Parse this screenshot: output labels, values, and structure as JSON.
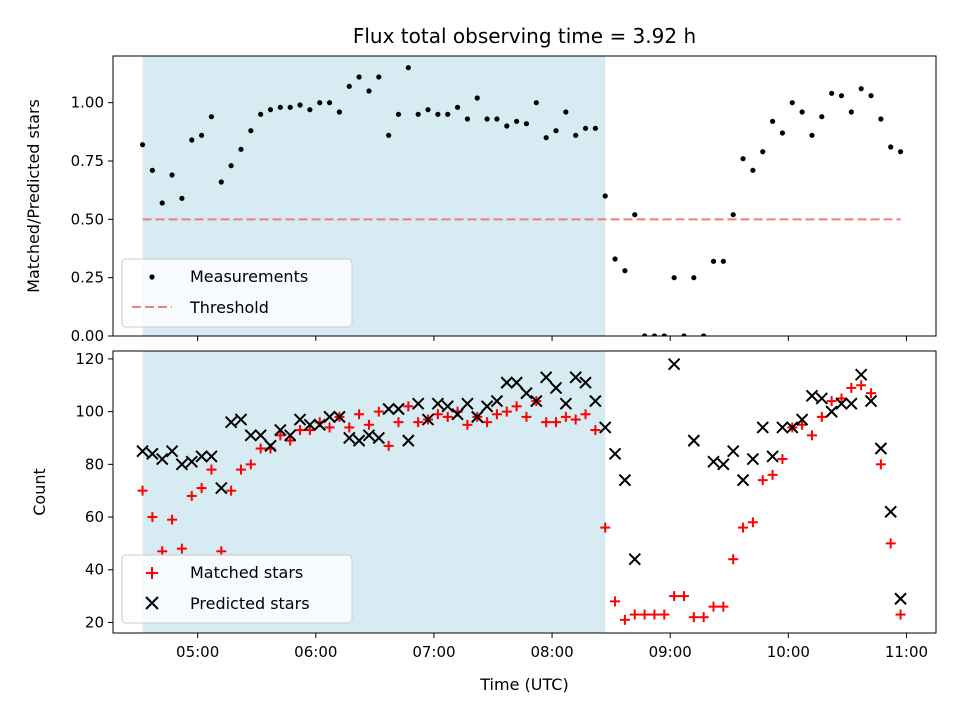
{
  "chart_data": [
    {
      "type": "scatter",
      "title": "Flux total observing time = 3.92 h",
      "xlabel": "",
      "ylabel": "Matched/Predicted stars",
      "xlim": [
        "04:17",
        "11:15"
      ],
      "ylim": [
        0,
        1.2
      ],
      "yticks": [
        "0.00",
        "0.25",
        "0.50",
        "0.75",
        "1.00"
      ],
      "ytick_values": [
        0,
        0.25,
        0.5,
        0.75,
        1.0
      ],
      "grid": false,
      "legend": "lower-left",
      "shaded_span": [
        "04:32",
        "08:27"
      ],
      "shade_color": "#add8e6",
      "threshold": {
        "name": "Threshold",
        "y": 0.5,
        "x_range": [
          "04:32",
          "10:57"
        ],
        "color": "#f08080"
      },
      "series": [
        {
          "name": "Measurements",
          "color": "#000000",
          "marker": "dot",
          "x": [
            "04:32",
            "04:37",
            "04:42",
            "04:47",
            "04:52",
            "04:57",
            "05:02",
            "05:07",
            "05:12",
            "05:17",
            "05:22",
            "05:27",
            "05:32",
            "05:37",
            "05:42",
            "05:47",
            "05:52",
            "05:57",
            "06:02",
            "06:07",
            "06:12",
            "06:17",
            "06:22",
            "06:27",
            "06:32",
            "06:37",
            "06:42",
            "06:47",
            "06:52",
            "06:57",
            "07:02",
            "07:07",
            "07:12",
            "07:17",
            "07:22",
            "07:27",
            "07:32",
            "07:37",
            "07:42",
            "07:47",
            "07:52",
            "07:57",
            "08:02",
            "08:07",
            "08:12",
            "08:17",
            "08:22",
            "08:27",
            "08:32",
            "08:37",
            "08:42",
            "08:47",
            "08:52",
            "08:57",
            "09:02",
            "09:07",
            "09:12",
            "09:17",
            "09:22",
            "09:27",
            "09:32",
            "09:37",
            "09:42",
            "09:47",
            "09:52",
            "09:57",
            "10:02",
            "10:07",
            "10:12",
            "10:17",
            "10:22",
            "10:27",
            "10:32",
            "10:37",
            "10:42",
            "10:47",
            "10:52",
            "10:57"
          ],
          "y": [
            0.82,
            0.71,
            0.57,
            0.69,
            0.59,
            0.84,
            0.86,
            0.94,
            0.66,
            0.73,
            0.8,
            0.88,
            0.95,
            0.97,
            0.98,
            0.98,
            0.99,
            0.97,
            1.0,
            1.0,
            0.96,
            1.07,
            1.11,
            1.05,
            1.11,
            0.86,
            0.95,
            1.15,
            0.95,
            0.97,
            0.95,
            0.95,
            0.98,
            0.93,
            1.02,
            0.93,
            0.93,
            0.9,
            0.92,
            0.91,
            1.0,
            0.85,
            0.88,
            0.96,
            0.86,
            0.89,
            0.89,
            0.6,
            0.33,
            0.28,
            0.52,
            0.0,
            0.0,
            0.0,
            0.25,
            0.0,
            0.25,
            0.0,
            0.32,
            0.32,
            0.52,
            0.76,
            0.71,
            0.79,
            0.92,
            0.87,
            1.0,
            0.96,
            0.86,
            0.94,
            1.04,
            1.03,
            0.96,
            1.06,
            1.03,
            0.93,
            0.81,
            0.79
          ]
        }
      ]
    },
    {
      "type": "scatter",
      "title": "",
      "xlabel": "Time (UTC)",
      "ylabel": "Count",
      "xlim": [
        "04:17",
        "11:15"
      ],
      "xticks": [
        "05:00",
        "06:00",
        "07:00",
        "08:00",
        "09:00",
        "10:00",
        "11:00"
      ],
      "ylim": [
        16,
        123
      ],
      "yticks": [
        "20",
        "40",
        "60",
        "80",
        "100",
        "120"
      ],
      "ytick_values": [
        20,
        40,
        60,
        80,
        100,
        120
      ],
      "grid": false,
      "legend": "lower-left",
      "shaded_span": [
        "04:32",
        "08:27"
      ],
      "shade_color": "#add8e6",
      "series": [
        {
          "name": "Matched stars",
          "color": "#ff0000",
          "marker": "plus",
          "x": [
            "04:32",
            "04:37",
            "04:42",
            "04:47",
            "04:52",
            "04:57",
            "05:02",
            "05:07",
            "05:12",
            "05:17",
            "05:22",
            "05:27",
            "05:32",
            "05:37",
            "05:42",
            "05:47",
            "05:52",
            "05:57",
            "06:02",
            "06:07",
            "06:12",
            "06:17",
            "06:22",
            "06:27",
            "06:32",
            "06:37",
            "06:42",
            "06:47",
            "06:52",
            "06:57",
            "07:02",
            "07:07",
            "07:12",
            "07:17",
            "07:22",
            "07:27",
            "07:32",
            "07:37",
            "07:42",
            "07:47",
            "07:52",
            "07:57",
            "08:02",
            "08:07",
            "08:12",
            "08:17",
            "08:22",
            "08:27",
            "08:32",
            "08:37",
            "08:42",
            "08:47",
            "08:52",
            "08:57",
            "09:02",
            "09:07",
            "09:12",
            "09:17",
            "09:22",
            "09:27",
            "09:32",
            "09:37",
            "09:42",
            "09:47",
            "09:52",
            "09:57",
            "10:02",
            "10:07",
            "10:12",
            "10:17",
            "10:22",
            "10:27",
            "10:32",
            "10:37",
            "10:42",
            "10:47",
            "10:52",
            "10:57"
          ],
          "y": [
            70,
            60,
            47,
            59,
            48,
            68,
            71,
            78,
            47,
            70,
            78,
            80,
            86,
            86,
            91,
            89,
            93,
            93,
            96,
            94,
            98,
            94,
            99,
            95,
            100,
            87,
            96,
            102,
            96,
            97,
            99,
            98,
            100,
            95,
            98,
            96,
            99,
            100,
            102,
            98,
            104,
            96,
            96,
            98,
            97,
            99,
            93,
            56,
            28,
            21,
            23,
            23,
            23,
            23,
            30,
            30,
            22,
            22,
            26,
            26,
            44,
            56,
            58,
            74,
            76,
            82,
            94,
            95,
            91,
            98,
            104,
            105,
            109,
            110,
            107,
            80,
            50,
            23
          ]
        },
        {
          "name": "Predicted stars",
          "color": "#000000",
          "marker": "x",
          "x": [
            "04:32",
            "04:37",
            "04:42",
            "04:47",
            "04:52",
            "04:57",
            "05:02",
            "05:07",
            "05:12",
            "05:17",
            "05:22",
            "05:27",
            "05:32",
            "05:37",
            "05:42",
            "05:47",
            "05:52",
            "05:57",
            "06:02",
            "06:07",
            "06:12",
            "06:17",
            "06:22",
            "06:27",
            "06:32",
            "06:37",
            "06:42",
            "06:47",
            "06:52",
            "06:57",
            "07:02",
            "07:07",
            "07:12",
            "07:17",
            "07:22",
            "07:27",
            "07:32",
            "07:37",
            "07:42",
            "07:47",
            "07:52",
            "07:57",
            "08:02",
            "08:07",
            "08:12",
            "08:17",
            "08:22",
            "08:27",
            "08:32",
            "08:37",
            "08:42",
            "08:47",
            "08:52",
            "08:57",
            "09:02",
            "09:07",
            "09:12",
            "09:17",
            "09:22",
            "09:27",
            "09:32",
            "09:37",
            "09:42",
            "09:47",
            "09:52",
            "09:57",
            "10:02",
            "10:07",
            "10:12",
            "10:17",
            "10:22",
            "10:27",
            "10:32",
            "10:37",
            "10:42",
            "10:47",
            "10:52",
            "10:57"
          ],
          "y": [
            85,
            84,
            82,
            85,
            80,
            81,
            83,
            83,
            71,
            96,
            97,
            91,
            91,
            87,
            93,
            91,
            97,
            95,
            95,
            98,
            98,
            90,
            89,
            91,
            90,
            101,
            101,
            89,
            103,
            97,
            103,
            102,
            99,
            103,
            98,
            102,
            104,
            111,
            111,
            107,
            104,
            113,
            109,
            103,
            113,
            111,
            104,
            94,
            84,
            74,
            44,
            null,
            null,
            null,
            118,
            null,
            89,
            null,
            81,
            80,
            85,
            74,
            82,
            94,
            83,
            94,
            94,
            97,
            106,
            105,
            100,
            103,
            103,
            114,
            104,
            86,
            62,
            29
          ]
        }
      ]
    }
  ]
}
